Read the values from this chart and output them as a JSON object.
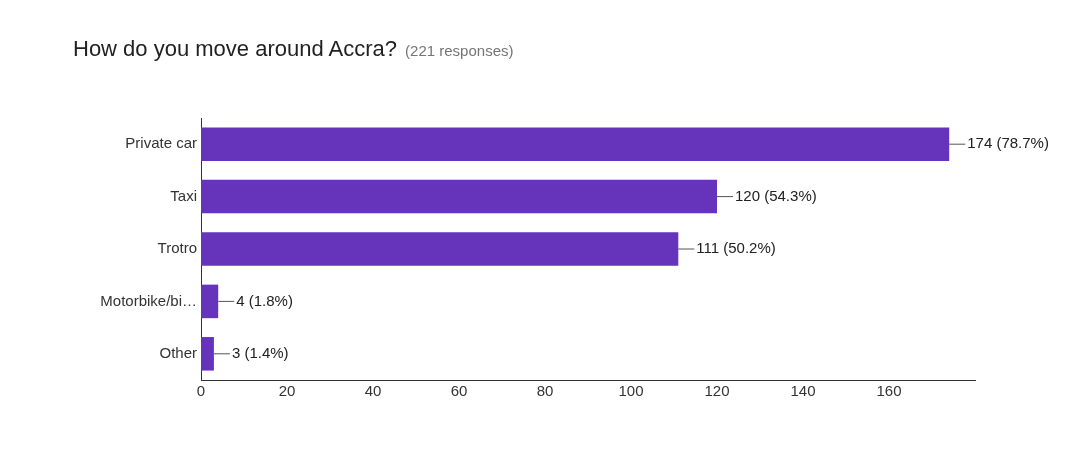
{
  "chart_data": {
    "type": "bar",
    "orientation": "horizontal",
    "title": "How do you move around Accra?",
    "subtitle": "(221 responses)",
    "categories": [
      "Private car",
      "Taxi",
      "Trotro",
      "Motorbike/bi…",
      "Other"
    ],
    "values": [
      174,
      120,
      111,
      4,
      3
    ],
    "value_labels": [
      "174 (78.7%)",
      "120 (54.3%)",
      "111 (50.2%)",
      "4 (1.8%)",
      "3 (1.4%)"
    ],
    "color": "#6633bb",
    "xlim": [
      0,
      180
    ],
    "xticks": [
      0,
      20,
      40,
      60,
      80,
      100,
      120,
      140,
      160
    ],
    "grid": false,
    "legend": false
  }
}
